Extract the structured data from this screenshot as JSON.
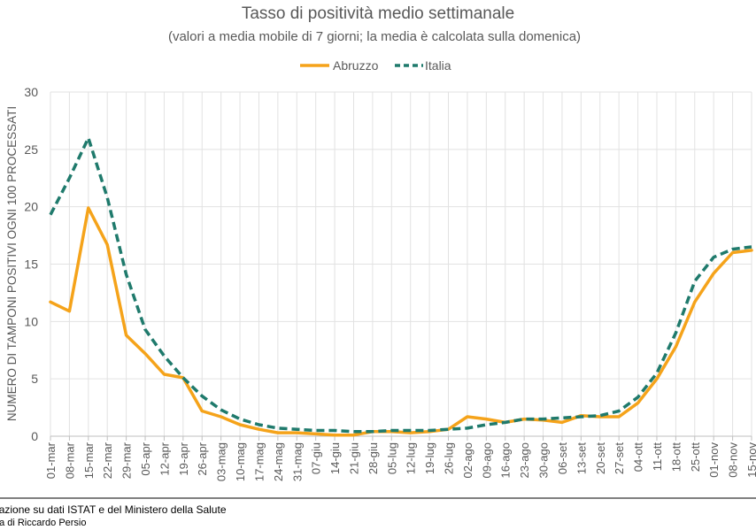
{
  "chart_data": {
    "type": "line",
    "title": "Tasso di positività medio settimanale",
    "subtitle": "(valori a media mobile di 7 giorni; la media è calcolata sulla domenica)",
    "ylabel": "NUMERO DI TAMPONI POSITIVI OGNI 100 PROCESSATI",
    "xlabel": "",
    "ylim": [
      0,
      30
    ],
    "yticks": [
      0,
      5,
      10,
      15,
      20,
      25,
      30
    ],
    "grid": true,
    "legend": "top-center",
    "categories": [
      "01-mar",
      "08-mar",
      "15-mar",
      "22-mar",
      "29-mar",
      "05-apr",
      "12-apr",
      "19-apr",
      "26-apr",
      "03-mag",
      "10-mag",
      "17-mag",
      "24-mag",
      "31-mag",
      "07-giu",
      "14-giu",
      "21-giu",
      "28-giu",
      "05-lug",
      "12-lug",
      "19-lug",
      "26-lug",
      "02-ago",
      "09-ago",
      "16-ago",
      "23-ago",
      "30-ago",
      "06-set",
      "13-set",
      "20-set",
      "27-set",
      "04-ott",
      "11-ott",
      "18-ott",
      "25-ott",
      "01-nov",
      "08-nov",
      "15-nov"
    ],
    "series": [
      {
        "name": "Abruzzo",
        "color": "#F5A31A",
        "style": "solid",
        "values": [
          11.7,
          10.9,
          19.9,
          16.7,
          8.8,
          7.2,
          5.4,
          5.1,
          2.2,
          1.7,
          1.0,
          0.6,
          0.3,
          0.3,
          0.2,
          0.1,
          0.1,
          0.4,
          0.4,
          0.3,
          0.4,
          0.6,
          1.7,
          1.5,
          1.2,
          1.5,
          1.4,
          1.2,
          1.8,
          1.7,
          1.7,
          2.9,
          5.0,
          7.8,
          11.7,
          14.2,
          16.0,
          16.2
        ]
      },
      {
        "name": "Italia",
        "color": "#1F7A6C",
        "style": "dashed",
        "values": [
          19.3,
          22.5,
          26.0,
          20.8,
          14.1,
          9.3,
          7.0,
          5.1,
          3.5,
          2.3,
          1.5,
          1.0,
          0.7,
          0.6,
          0.5,
          0.5,
          0.4,
          0.4,
          0.5,
          0.5,
          0.5,
          0.6,
          0.7,
          1.0,
          1.2,
          1.5,
          1.5,
          1.6,
          1.7,
          1.8,
          2.2,
          3.4,
          5.5,
          9.0,
          13.5,
          15.6,
          16.3,
          16.5
        ]
      }
    ]
  },
  "footer": {
    "source": "Elaborazione su dati ISTAT e del Ministero della Salute",
    "credit": "A cura di Riccardo Persio"
  }
}
